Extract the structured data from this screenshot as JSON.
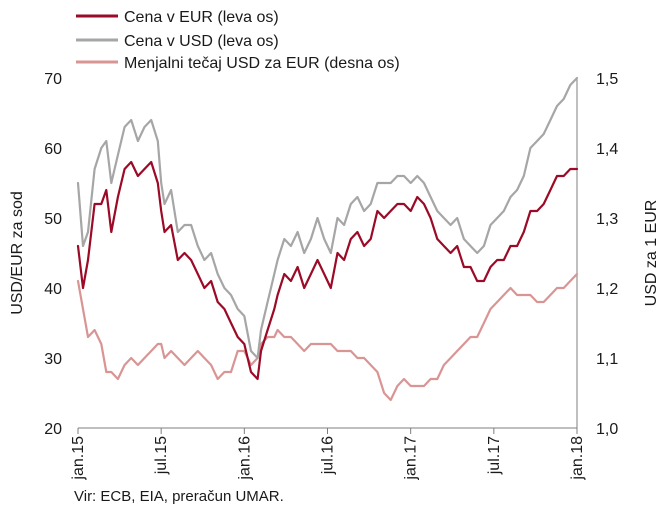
{
  "chart_data": {
    "type": "line",
    "x_tick_labels": [
      "jan.15",
      "jul.15",
      "jan.16",
      "jul.16",
      "jan.17",
      "jul.17",
      "jan.18"
    ],
    "y_left": {
      "ylim": [
        20,
        70
      ],
      "ticks": [
        "20",
        "30",
        "40",
        "50",
        "60",
        "70"
      ],
      "label": "USD/EUR za sod"
    },
    "y_right": {
      "ylim": [
        1.0,
        1.5
      ],
      "ticks": [
        "1,0",
        "1,1",
        "1,2",
        "1,3",
        "1,4",
        "1,5"
      ],
      "label": "USD za 1 EUR"
    },
    "grid": false,
    "legend_position": "top",
    "series": [
      {
        "name": "Cena v EUR (leva os)",
        "axis": "left",
        "color": "#9b0a26",
        "values": [
          [
            0,
            46
          ],
          [
            0.15,
            40
          ],
          [
            0.3,
            44
          ],
          [
            0.5,
            52
          ],
          [
            0.7,
            52
          ],
          [
            0.85,
            54
          ],
          [
            1,
            48
          ],
          [
            1.2,
            53
          ],
          [
            1.4,
            57
          ],
          [
            1.6,
            58
          ],
          [
            1.8,
            56
          ],
          [
            2,
            57
          ],
          [
            2.2,
            58
          ],
          [
            2.4,
            55
          ],
          [
            2.5,
            51
          ],
          [
            2.6,
            48
          ],
          [
            2.8,
            49
          ],
          [
            3,
            44
          ],
          [
            3.2,
            45
          ],
          [
            3.4,
            44
          ],
          [
            3.6,
            42
          ],
          [
            3.8,
            40
          ],
          [
            4,
            41
          ],
          [
            4.2,
            38
          ],
          [
            4.4,
            37
          ],
          [
            4.6,
            35
          ],
          [
            4.8,
            33
          ],
          [
            5,
            32
          ],
          [
            5.2,
            28
          ],
          [
            5.4,
            27
          ],
          [
            5.5,
            31
          ],
          [
            5.7,
            34
          ],
          [
            5.9,
            37
          ],
          [
            6,
            39
          ],
          [
            6.2,
            42
          ],
          [
            6.4,
            41
          ],
          [
            6.6,
            43
          ],
          [
            6.8,
            40
          ],
          [
            7,
            42
          ],
          [
            7.2,
            44
          ],
          [
            7.4,
            42
          ],
          [
            7.6,
            40
          ],
          [
            7.8,
            45
          ],
          [
            8,
            44
          ],
          [
            8.2,
            47
          ],
          [
            8.4,
            48
          ],
          [
            8.6,
            46
          ],
          [
            8.8,
            47
          ],
          [
            9,
            51
          ],
          [
            9.2,
            50
          ],
          [
            9.4,
            51
          ],
          [
            9.6,
            52
          ],
          [
            9.8,
            52
          ],
          [
            10,
            51
          ],
          [
            10.2,
            53
          ],
          [
            10.4,
            52
          ],
          [
            10.6,
            50
          ],
          [
            10.8,
            47
          ],
          [
            11,
            46
          ],
          [
            11.2,
            45
          ],
          [
            11.4,
            46
          ],
          [
            11.6,
            43
          ],
          [
            11.8,
            43
          ],
          [
            12,
            41
          ],
          [
            12.2,
            41
          ],
          [
            12.4,
            43
          ],
          [
            12.6,
            44
          ],
          [
            12.8,
            44
          ],
          [
            13,
            46
          ],
          [
            13.2,
            46
          ],
          [
            13.4,
            48
          ],
          [
            13.6,
            51
          ],
          [
            13.8,
            51
          ],
          [
            14,
            52
          ],
          [
            14.2,
            54
          ],
          [
            14.4,
            56
          ],
          [
            14.6,
            56
          ],
          [
            14.8,
            57
          ],
          [
            15,
            57
          ]
        ]
      },
      {
        "name": "Cena v USD (leva os)",
        "axis": "left",
        "color": "#a6a6a6",
        "values": [
          [
            0,
            55
          ],
          [
            0.15,
            46
          ],
          [
            0.3,
            48
          ],
          [
            0.5,
            57
          ],
          [
            0.7,
            60
          ],
          [
            0.85,
            61
          ],
          [
            1,
            55
          ],
          [
            1.2,
            59
          ],
          [
            1.4,
            63
          ],
          [
            1.6,
            64
          ],
          [
            1.8,
            61
          ],
          [
            2,
            63
          ],
          [
            2.2,
            64
          ],
          [
            2.4,
            61
          ],
          [
            2.5,
            55
          ],
          [
            2.6,
            52
          ],
          [
            2.8,
            54
          ],
          [
            3,
            48
          ],
          [
            3.2,
            49
          ],
          [
            3.4,
            49
          ],
          [
            3.6,
            46
          ],
          [
            3.8,
            44
          ],
          [
            4,
            45
          ],
          [
            4.2,
            42
          ],
          [
            4.4,
            40
          ],
          [
            4.6,
            39
          ],
          [
            4.8,
            37
          ],
          [
            5,
            36
          ],
          [
            5.2,
            31
          ],
          [
            5.4,
            30
          ],
          [
            5.5,
            34
          ],
          [
            5.7,
            38
          ],
          [
            5.9,
            42
          ],
          [
            6,
            44
          ],
          [
            6.2,
            47
          ],
          [
            6.4,
            46
          ],
          [
            6.6,
            48
          ],
          [
            6.8,
            45
          ],
          [
            7,
            47
          ],
          [
            7.2,
            50
          ],
          [
            7.4,
            47
          ],
          [
            7.6,
            45
          ],
          [
            7.8,
            50
          ],
          [
            8,
            49
          ],
          [
            8.2,
            52
          ],
          [
            8.4,
            53
          ],
          [
            8.6,
            51
          ],
          [
            8.8,
            52
          ],
          [
            9,
            55
          ],
          [
            9.2,
            55
          ],
          [
            9.4,
            55
          ],
          [
            9.6,
            56
          ],
          [
            9.8,
            56
          ],
          [
            10,
            55
          ],
          [
            10.2,
            56
          ],
          [
            10.4,
            55
          ],
          [
            10.6,
            53
          ],
          [
            10.8,
            51
          ],
          [
            11,
            50
          ],
          [
            11.2,
            49
          ],
          [
            11.4,
            50
          ],
          [
            11.6,
            47
          ],
          [
            11.8,
            46
          ],
          [
            12,
            45
          ],
          [
            12.2,
            46
          ],
          [
            12.4,
            49
          ],
          [
            12.6,
            50
          ],
          [
            12.8,
            51
          ],
          [
            13,
            53
          ],
          [
            13.2,
            54
          ],
          [
            13.4,
            56
          ],
          [
            13.6,
            60
          ],
          [
            13.8,
            61
          ],
          [
            14,
            62
          ],
          [
            14.2,
            64
          ],
          [
            14.4,
            66
          ],
          [
            14.6,
            67
          ],
          [
            14.8,
            69
          ],
          [
            15,
            70
          ]
        ]
      },
      {
        "name": "Menjalni tečaj USD za EUR (desna os)",
        "axis": "right",
        "color": "#d99594",
        "values": [
          [
            0,
            1.21
          ],
          [
            0.15,
            1.17
          ],
          [
            0.3,
            1.13
          ],
          [
            0.5,
            1.14
          ],
          [
            0.7,
            1.12
          ],
          [
            0.85,
            1.08
          ],
          [
            1,
            1.08
          ],
          [
            1.2,
            1.07
          ],
          [
            1.4,
            1.09
          ],
          [
            1.6,
            1.1
          ],
          [
            1.8,
            1.09
          ],
          [
            2,
            1.1
          ],
          [
            2.2,
            1.11
          ],
          [
            2.4,
            1.12
          ],
          [
            2.5,
            1.12
          ],
          [
            2.6,
            1.1
          ],
          [
            2.8,
            1.11
          ],
          [
            3,
            1.1
          ],
          [
            3.2,
            1.09
          ],
          [
            3.4,
            1.1
          ],
          [
            3.6,
            1.11
          ],
          [
            3.8,
            1.1
          ],
          [
            4,
            1.09
          ],
          [
            4.2,
            1.07
          ],
          [
            4.4,
            1.08
          ],
          [
            4.6,
            1.08
          ],
          [
            4.8,
            1.11
          ],
          [
            5,
            1.11
          ],
          [
            5.2,
            1.09
          ],
          [
            5.4,
            1.1
          ],
          [
            5.5,
            1.12
          ],
          [
            5.7,
            1.13
          ],
          [
            5.9,
            1.13
          ],
          [
            6,
            1.14
          ],
          [
            6.2,
            1.13
          ],
          [
            6.4,
            1.13
          ],
          [
            6.6,
            1.12
          ],
          [
            6.8,
            1.11
          ],
          [
            7,
            1.12
          ],
          [
            7.2,
            1.12
          ],
          [
            7.4,
            1.12
          ],
          [
            7.6,
            1.12
          ],
          [
            7.8,
            1.11
          ],
          [
            8,
            1.11
          ],
          [
            8.2,
            1.11
          ],
          [
            8.4,
            1.1
          ],
          [
            8.6,
            1.1
          ],
          [
            8.8,
            1.09
          ],
          [
            9,
            1.08
          ],
          [
            9.2,
            1.05
          ],
          [
            9.4,
            1.04
          ],
          [
            9.6,
            1.06
          ],
          [
            9.8,
            1.07
          ],
          [
            10,
            1.06
          ],
          [
            10.2,
            1.06
          ],
          [
            10.4,
            1.06
          ],
          [
            10.6,
            1.07
          ],
          [
            10.8,
            1.07
          ],
          [
            11,
            1.09
          ],
          [
            11.2,
            1.1
          ],
          [
            11.4,
            1.11
          ],
          [
            11.6,
            1.12
          ],
          [
            11.8,
            1.13
          ],
          [
            12,
            1.13
          ],
          [
            12.2,
            1.15
          ],
          [
            12.4,
            1.17
          ],
          [
            12.6,
            1.18
          ],
          [
            12.8,
            1.19
          ],
          [
            13,
            1.2
          ],
          [
            13.2,
            1.19
          ],
          [
            13.4,
            1.19
          ],
          [
            13.6,
            1.19
          ],
          [
            13.8,
            1.18
          ],
          [
            14,
            1.18
          ],
          [
            14.2,
            1.19
          ],
          [
            14.4,
            1.2
          ],
          [
            14.6,
            1.2
          ],
          [
            14.8,
            1.21
          ],
          [
            15,
            1.22
          ]
        ]
      }
    ]
  },
  "source_text": "Vir: ECB, EIA, preračun UMAR."
}
